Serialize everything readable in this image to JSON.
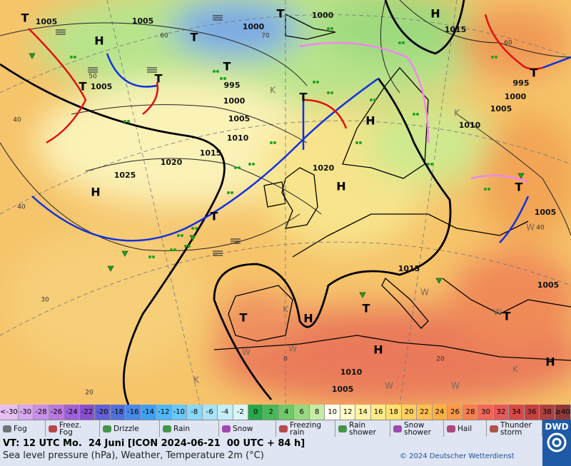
{
  "map": {
    "isobar_labels": [
      "1005",
      "1005",
      "1000",
      "1000",
      "1005",
      "995",
      "1000",
      "1005",
      "1010",
      "1015",
      "1020",
      "1025",
      "1020",
      "1015",
      "995",
      "1000",
      "1005",
      "1010",
      "1005",
      "1015",
      "1005",
      "1010",
      "1005"
    ],
    "highs": [
      "H",
      "H",
      "H",
      "H",
      "H",
      "H",
      "H",
      "H"
    ],
    "lows": [
      "T",
      "T",
      "T",
      "T",
      "T",
      "T",
      "T",
      "T",
      "T",
      "T",
      "T",
      "T",
      "T"
    ],
    "grid_labels": [
      "60",
      "70",
      "60",
      "50",
      "40",
      "40",
      "40",
      "30",
      "20",
      "0",
      "20"
    ],
    "temperature_marks": [
      "K",
      "K",
      "K",
      "K",
      "K",
      "W",
      "W",
      "W",
      "W",
      "W",
      "W",
      "W"
    ]
  },
  "scale": {
    "labels": [
      "<-30",
      -30,
      -28,
      -26,
      -24,
      -22,
      -20,
      -18,
      -16,
      -14,
      -12,
      -10,
      -8,
      -6,
      -4,
      -2,
      0,
      2,
      4,
      6,
      8,
      10,
      12,
      14,
      16,
      18,
      20,
      22,
      24,
      26,
      28,
      30,
      32,
      34,
      36,
      38,
      "≥40"
    ]
  },
  "legend": [
    "Fog",
    "Freez. Fog",
    "Drizzle",
    "Rain",
    "Snow",
    "Freezing rain",
    "Rain shower",
    "Snow shower",
    "Hail",
    "Thunder storm"
  ],
  "footer": {
    "valid_time": "VT: 12 UTC Mo.  24 Juni [ICON 2024-06-21  00 UTC + 84 h]",
    "description": "Sea level pressure (hPa), Weather, Temperature 2m (°C)",
    "copyright": "© 2024 Deutscher Wetterdienst",
    "logo": "DWD"
  }
}
